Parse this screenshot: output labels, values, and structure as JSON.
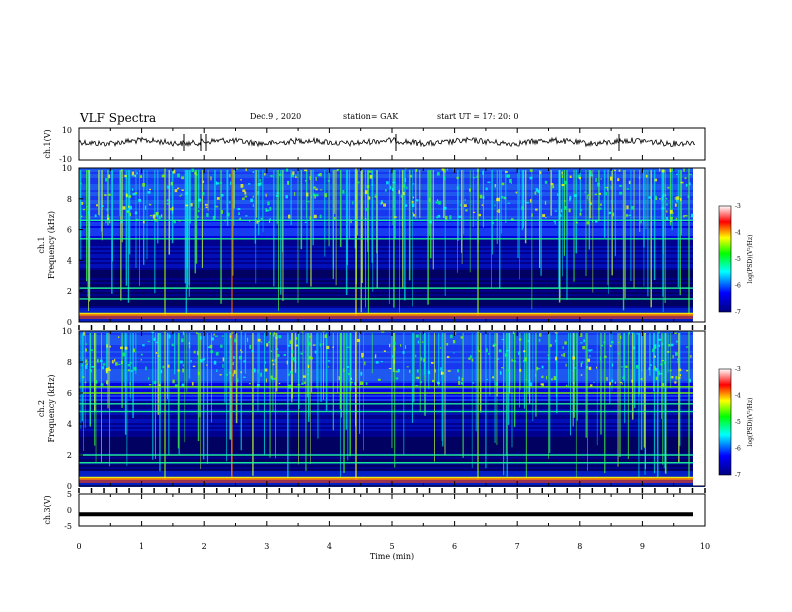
{
  "header": {
    "title": "VLF Spectra",
    "date": "Dec.9  , 2020",
    "station": "station= GAK",
    "start_ut": "start  UT  =    17: 20: 0"
  },
  "chart_data": [
    {
      "type": "line",
      "ylabel": "ch.1(V)",
      "ylim": [
        -10,
        10
      ],
      "yticks": [
        "10",
        "-10"
      ],
      "xlim": [
        0,
        10
      ],
      "description_level": 3,
      "series": [
        {
          "values": "noisy waveform around 3 V"
        }
      ]
    },
    {
      "type": "heatmap",
      "ylabel": "ch.1\nFrequency  (kHz)",
      "ylabel_line1": "ch.1",
      "ylabel_line2": "Frequency  (kHz)",
      "ylim": [
        0,
        10
      ],
      "yticks": [
        "0",
        "2",
        "4",
        "6",
        "8",
        "10"
      ],
      "xlim": [
        0,
        10
      ],
      "colorbar": {
        "label": "log(PSD)(V²/Hz)",
        "ticks": [
          "-3",
          "-4",
          "-5",
          "-6",
          "-7"
        ],
        "range": [
          -7,
          -3
        ]
      },
      "bands_khz": [
        0.5,
        1.5,
        2.2,
        5.4,
        6.6
      ]
    },
    {
      "type": "heatmap",
      "ylabel_line1": "ch.2",
      "ylabel_line2": "Frequency  (kHz)",
      "ylim": [
        0,
        10
      ],
      "yticks": [
        "0",
        "2",
        "4",
        "6",
        "8",
        "10"
      ],
      "xlim": [
        0,
        10
      ],
      "colorbar": {
        "label": "log(PSD)(V²/Hz)",
        "ticks": [
          "-3",
          "-4",
          "-5",
          "-6",
          "-7"
        ],
        "range": [
          -7,
          -3
        ]
      },
      "bands_khz": [
        0.5,
        1.5,
        2.0,
        4.8,
        5.3,
        6.0,
        6.4
      ]
    },
    {
      "type": "line",
      "ylabel": "ch.3(V)",
      "ylim": [
        -5,
        5
      ],
      "yticks": [
        "5",
        "0",
        "-5"
      ],
      "xlim": [
        0,
        10
      ],
      "xticks": [
        "0",
        "1",
        "2",
        "3",
        "4",
        "5",
        "6",
        "7",
        "8",
        "9",
        "10"
      ],
      "xlabel": "Time  (min)",
      "series": [
        {
          "values": [
            -1,
            -1
          ]
        }
      ]
    }
  ],
  "colors": {
    "cmap": [
      "#00007f",
      "#0000ff",
      "#00ffff",
      "#00ff00",
      "#ffff00",
      "#ff0000",
      "#ffffff"
    ]
  }
}
